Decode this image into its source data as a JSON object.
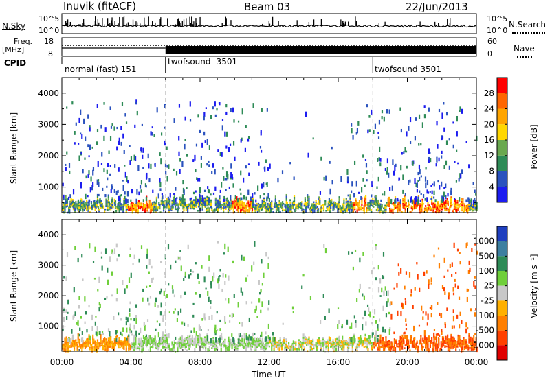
{
  "header": {
    "site_title": "Inuvik (fitACF)",
    "beam": "Beam 03",
    "date": "22/Jun/2013"
  },
  "noise_panel": {
    "left_label": "N.Sky",
    "right_label": "N.Search",
    "left_ticks": [
      "10^5",
      "10^0"
    ],
    "right_ticks": [
      "10^5",
      "10^0"
    ]
  },
  "freq_panel": {
    "left_label_top": "Freq.",
    "left_label_bottom": "[MHz]",
    "right_label": "Nave",
    "left_ticks": [
      "18",
      "8"
    ],
    "right_ticks": [
      "60",
      "0"
    ]
  },
  "cpid_panel": {
    "label": "CPID",
    "segments": [
      {
        "name": "normal (fast) 151",
        "start_hour": 0,
        "end_hour": 6
      },
      {
        "name": "twofsound -3501",
        "start_hour": 6,
        "end_hour": 18
      },
      {
        "name": "twofsound 3501",
        "start_hour": 18,
        "end_hour": 24
      }
    ]
  },
  "chart_data": [
    {
      "type": "heatmap",
      "quantity": "power",
      "ylabel": "Slant Range [km]",
      "xlim_hours": [
        0,
        24
      ],
      "ylim": [
        180,
        4500
      ],
      "yticks": [
        "1000",
        "2000",
        "3000",
        "4000"
      ],
      "colorbar": {
        "label": "Power [dB]",
        "ticks": [
          "4",
          "8",
          "12",
          "16",
          "20",
          "24",
          "28"
        ],
        "colors": [
          "#1c1cf0",
          "#2a52be",
          "#2e8b57",
          "#6aa84f",
          "#ffd700",
          "#ffa500",
          "#ff6600",
          "#ff0000"
        ]
      }
    },
    {
      "type": "heatmap",
      "quantity": "velocity",
      "ylabel": "Slant Range [km]",
      "xlim_hours": [
        0,
        24
      ],
      "ylim": [
        180,
        4500
      ],
      "yticks": [
        "1000",
        "2000",
        "3000",
        "4000"
      ],
      "colorbar": {
        "label": "Velocity [m s⁻¹]",
        "ticks": [
          "1000",
          "500",
          "100",
          "25",
          "-25",
          "-100",
          "-500",
          "-1000"
        ],
        "colors": [
          "#1f3fbf",
          "#3d7fa0",
          "#2e8b57",
          "#6fcf3a",
          "#c8c8c8",
          "#ffb000",
          "#ff7f00",
          "#ff4000",
          "#e00000"
        ]
      }
    }
  ],
  "time_axis": {
    "label": "Time UT",
    "ticks": [
      "00:00",
      "04:00",
      "08:00",
      "12:00",
      "16:00",
      "20:00",
      "00:00"
    ]
  }
}
